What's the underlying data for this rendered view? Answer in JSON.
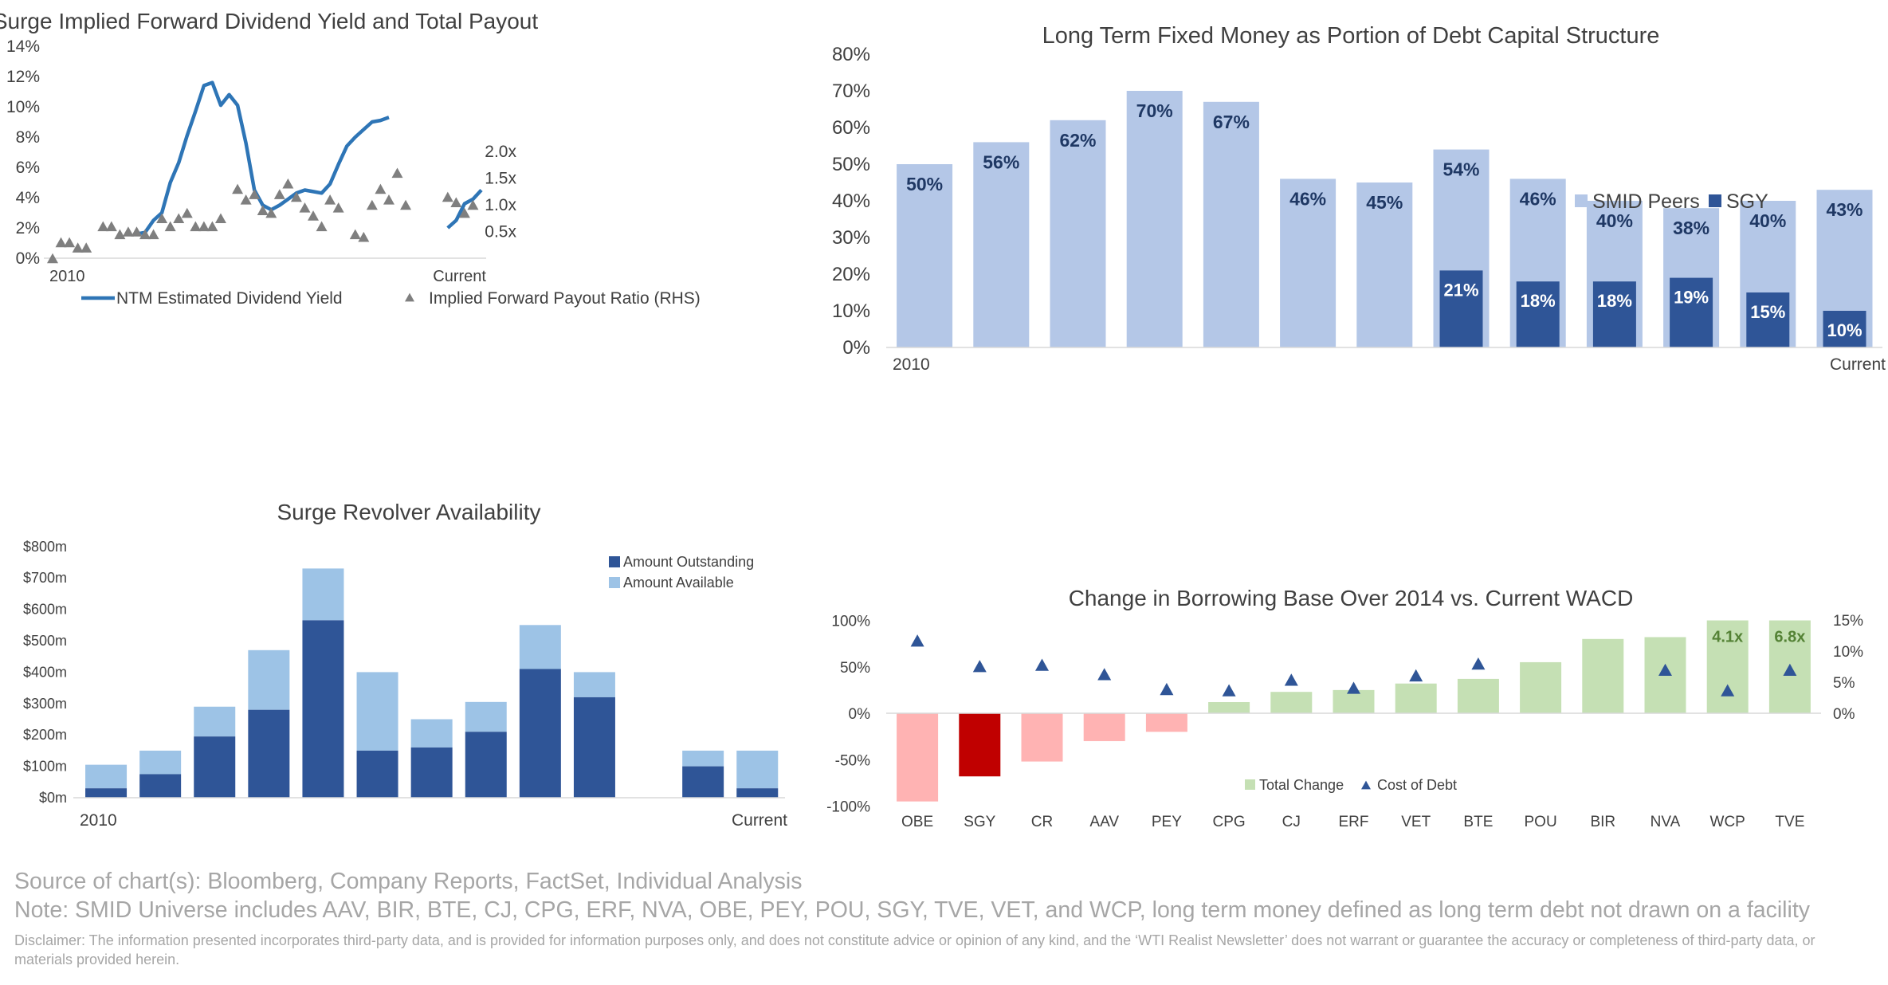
{
  "chart_data": [
    {
      "type": "line",
      "title": "Surge Implied Forward Dividend Yield and Total Payout",
      "x_tick_labels": [
        "2010",
        "Current"
      ],
      "y_left_ticks": [
        "0%",
        "2%",
        "4%",
        "6%",
        "8%",
        "10%",
        "12%",
        "14%"
      ],
      "y_left_range": [
        0,
        14
      ],
      "y_right_ticks": [
        "0.5x",
        "1.0x",
        "1.5x",
        "2.0x"
      ],
      "y_right_range": [
        0,
        2.3
      ],
      "series": [
        {
          "name": "NTM Estimated Dividend Yield",
          "axis": "left",
          "color": "#2e75b6",
          "segments": [
            [
              [
                10,
                1.6
              ],
              [
                11,
                1.7
              ],
              [
                12,
                2.5
              ],
              [
                13,
                3.0
              ],
              [
                14,
                5.0
              ],
              [
                15,
                6.3
              ],
              [
                16,
                8.1
              ],
              [
                17,
                9.7
              ],
              [
                18,
                11.4
              ],
              [
                19,
                11.6
              ],
              [
                20,
                10.1
              ],
              [
                21,
                10.8
              ],
              [
                22,
                10.1
              ],
              [
                23,
                7.6
              ],
              [
                24,
                4.5
              ],
              [
                25,
                3.5
              ],
              [
                26,
                3.2
              ],
              [
                27,
                3.5
              ],
              [
                28,
                3.9
              ],
              [
                29,
                4.3
              ],
              [
                30,
                4.5
              ],
              [
                31,
                4.4
              ],
              [
                32,
                4.3
              ],
              [
                33,
                4.9
              ],
              [
                34,
                6.2
              ],
              [
                35,
                7.4
              ],
              [
                36,
                8.0
              ],
              [
                37,
                8.5
              ],
              [
                38,
                9.0
              ],
              [
                39,
                9.1
              ],
              [
                40,
                9.3
              ]
            ],
            [
              [
                47,
                2.0
              ],
              [
                48,
                2.5
              ],
              [
                49,
                3.6
              ],
              [
                50,
                3.9
              ],
              [
                51,
                4.5
              ]
            ]
          ]
        },
        {
          "name": "Implied Forward Payout Ratio (RHS)",
          "axis": "right",
          "color": "#7f7f7f",
          "marker": "triangle",
          "points": [
            [
              0,
              0.0
            ],
            [
              1,
              0.3
            ],
            [
              2,
              0.3
            ],
            [
              3,
              0.2
            ],
            [
              4,
              0.2
            ],
            [
              6,
              0.6
            ],
            [
              7,
              0.6
            ],
            [
              8,
              0.45
            ],
            [
              9,
              0.5
            ],
            [
              10,
              0.5
            ],
            [
              11,
              0.45
            ],
            [
              12,
              0.45
            ],
            [
              13,
              0.75
            ],
            [
              14,
              0.6
            ],
            [
              15,
              0.75
            ],
            [
              16,
              0.85
            ],
            [
              17,
              0.6
            ],
            [
              18,
              0.6
            ],
            [
              19,
              0.6
            ],
            [
              20,
              0.75
            ],
            [
              22,
              1.3
            ],
            [
              23,
              1.1
            ],
            [
              24,
              1.2
            ],
            [
              25,
              0.9
            ],
            [
              26,
              0.85
            ],
            [
              27,
              1.2
            ],
            [
              28,
              1.4
            ],
            [
              29,
              1.15
            ],
            [
              30,
              0.95
            ],
            [
              31,
              0.8
            ],
            [
              32,
              0.6
            ],
            [
              33,
              1.1
            ],
            [
              34,
              0.95
            ],
            [
              36,
              0.45
            ],
            [
              37,
              0.4
            ],
            [
              38,
              1.0
            ],
            [
              39,
              1.3
            ],
            [
              40,
              1.1
            ],
            [
              41,
              1.6
            ],
            [
              42,
              1.0
            ],
            [
              47,
              1.15
            ],
            [
              48,
              1.05
            ],
            [
              49,
              0.85
            ],
            [
              50,
              1.0
            ]
          ]
        }
      ]
    },
    {
      "type": "bar",
      "title": "Long Term Fixed Money as Portion of Debt Capital Structure",
      "x_tick_labels": [
        "2010",
        "Current"
      ],
      "y_ticks": [
        "0%",
        "10%",
        "20%",
        "30%",
        "40%",
        "50%",
        "60%",
        "70%",
        "80%"
      ],
      "ylim": [
        0,
        80
      ],
      "legend_position": "top-right",
      "series": [
        {
          "name": "SMID Peers",
          "color": "#b4c7e7",
          "values": [
            50,
            56,
            62,
            70,
            67,
            46,
            45,
            54,
            46,
            40,
            38,
            40,
            43
          ],
          "labels": [
            "50%",
            "56%",
            "62%",
            "70%",
            "67%",
            "46%",
            "45%",
            "54%",
            "46%",
            "40%",
            "38%",
            "40%",
            "43%"
          ]
        },
        {
          "name": "SGY",
          "color": "#2f5597",
          "values": [
            null,
            null,
            null,
            null,
            null,
            null,
            null,
            21,
            18,
            18,
            19,
            15,
            10
          ],
          "labels": [
            "",
            "",
            "",
            "",
            "",
            "",
            "",
            "21%",
            "18%",
            "18%",
            "19%",
            "15%",
            "10%"
          ]
        }
      ]
    },
    {
      "type": "bar",
      "title": "Surge Revolver Availability",
      "x_tick_labels": [
        "2010",
        "Current"
      ],
      "y_ticks": [
        "$0m",
        "$100m",
        "$200m",
        "$300m",
        "$400m",
        "$500m",
        "$600m",
        "$700m",
        "$800m"
      ],
      "ylim": [
        0,
        800
      ],
      "stacked": true,
      "legend_position": "top-right",
      "series": [
        {
          "name": "Amount Outstanding",
          "color": "#2f5597",
          "values": [
            30,
            75,
            195,
            280,
            565,
            150,
            160,
            210,
            410,
            320,
            null,
            100,
            30
          ]
        },
        {
          "name": "Amount Available",
          "color": "#9dc3e6",
          "values": [
            75,
            75,
            95,
            190,
            165,
            250,
            90,
            95,
            140,
            80,
            null,
            50,
            120
          ]
        }
      ]
    },
    {
      "type": "bar",
      "title": "Change in Borrowing Base Over 2014 vs. Current WACD",
      "categories": [
        "OBE",
        "SGY",
        "CR",
        "AAV",
        "PEY",
        "CPG",
        "CJ",
        "ERF",
        "VET",
        "BTE",
        "POU",
        "BIR",
        "NVA",
        "WCP",
        "TVE"
      ],
      "y_left_ticks": [
        "-100%",
        "-50%",
        "0%",
        "50%",
        "100%"
      ],
      "y_left_range": [
        -100,
        100
      ],
      "y_right_ticks": [
        "0%",
        "5%",
        "10%",
        "15%"
      ],
      "y_right_range": [
        0,
        15
      ],
      "legend_position": "bottom",
      "series": [
        {
          "name": "Total Change",
          "axis": "left",
          "values": [
            -95,
            -68,
            -52,
            -30,
            -20,
            12,
            23,
            25,
            32,
            37,
            55,
            80,
            82,
            100,
            100
          ],
          "colors": [
            "#ffb3b3",
            "#c00000",
            "#ffb3b3",
            "#ffb3b3",
            "#ffb3b3",
            "#c5e0b4",
            "#c5e0b4",
            "#c5e0b4",
            "#c5e0b4",
            "#c5e0b4",
            "#c5e0b4",
            "#c5e0b4",
            "#c5e0b4",
            "#c5e0b4",
            "#c5e0b4"
          ],
          "labels": [
            "",
            "",
            "",
            "",
            "",
            "",
            "",
            "",
            "",
            "",
            "",
            "",
            "",
            "4.1x",
            "6.8x"
          ]
        },
        {
          "name": "Cost of Debt",
          "axis": "right",
          "color": "#2f5597",
          "marker": "triangle",
          "values": [
            11.7,
            7.6,
            7.8,
            6.3,
            3.9,
            3.7,
            5.4,
            4.1,
            6.1,
            8.0,
            null,
            null,
            7.0,
            3.7,
            7.0
          ]
        }
      ]
    }
  ],
  "footer": {
    "source": "Source of chart(s): Bloomberg, Company Reports, FactSet, Individual Analysis",
    "note": "Note: SMID Universe includes AAV, BIR, BTE, CJ, CPG, ERF, NVA, OBE, PEY, POU, SGY, TVE, VET, and WCP, long term money defined as long term debt not drawn on a facility",
    "disclaimer": "Disclaimer: The information presented incorporates third-party data, and is provided for information purposes only, and does not constitute advice or opinion of any kind, and the ‘WTI Realist Newsletter’ does not warrant or guarantee the accuracy or completeness of third-party data, or materials provided herein."
  }
}
